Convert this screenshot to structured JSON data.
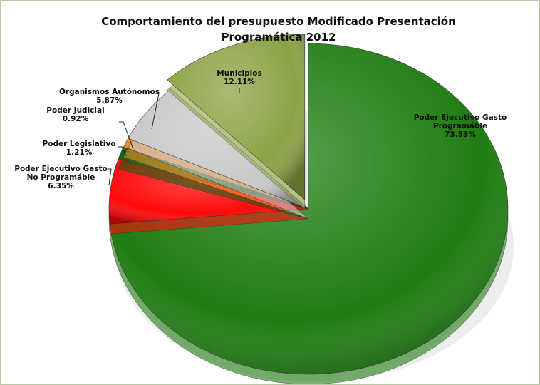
{
  "chart_data": {
    "type": "pie",
    "title": "Comportamiento del presupuesto Modificado Presentación Programática 2012",
    "categories": [
      "Poder Ejecutivo Gasto Programáble",
      "Poder Ejecutivo Gasto No Programáble",
      "Poder Legislativo",
      "Poder Judicial",
      "Organismos Autónomos",
      "Municipios"
    ],
    "values": [
      73.53,
      6.35,
      1.21,
      0.92,
      5.87,
      12.11
    ],
    "value_labels": [
      "73.53%",
      "6.35%",
      "1.21%",
      "0.92%",
      "5.87%",
      "12.11%"
    ],
    "colors": [
      "#1f7d12",
      "#ff0a0a",
      "#16620d",
      "#f08a24",
      "#c9c9c9",
      "#8da445"
    ]
  }
}
